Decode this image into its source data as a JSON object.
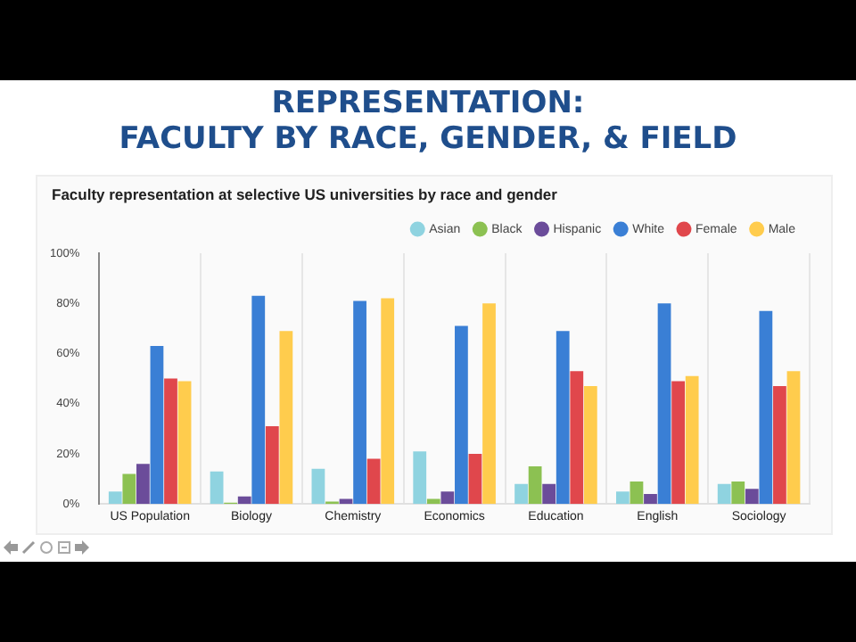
{
  "chart_data": {
    "type": "bar",
    "title": "REPRESENTATION:\nFACULTY BY RACE, GENDER, & FIELD",
    "subtitle": "Faculty representation at selective US universities by race and gender",
    "categories": [
      "US Population",
      "Biology",
      "Chemistry",
      "Economics",
      "Education",
      "English",
      "Sociology"
    ],
    "series": [
      {
        "name": "Asian",
        "color": "#8fd3e0",
        "values": [
          5,
          13,
          14,
          21,
          8,
          5,
          8
        ]
      },
      {
        "name": "Black",
        "color": "#8cc152",
        "values": [
          12,
          0.5,
          1,
          2,
          15,
          9,
          9
        ]
      },
      {
        "name": "Hispanic",
        "color": "#6b4c9a",
        "values": [
          16,
          3,
          2,
          5,
          8,
          4,
          6
        ]
      },
      {
        "name": "White",
        "color": "#3a7fd5",
        "values": [
          63,
          83,
          81,
          71,
          69,
          80,
          77
        ]
      },
      {
        "name": "Female",
        "color": "#e0474c",
        "values": [
          50,
          31,
          18,
          20,
          53,
          49,
          47
        ]
      },
      {
        "name": "Male",
        "color": "#ffcc4d",
        "values": [
          49,
          69,
          82,
          80,
          47,
          51,
          53
        ]
      }
    ],
    "ylim": [
      0,
      100
    ],
    "yticks": [
      {
        "value": 0,
        "label": "0%"
      },
      {
        "value": 20,
        "label": "20%"
      },
      {
        "value": 40,
        "label": "40%"
      },
      {
        "value": 60,
        "label": "60%"
      },
      {
        "value": 80,
        "label": "80%"
      },
      {
        "value": 100,
        "label": "100%"
      }
    ],
    "grid": "x",
    "legend": "top right"
  }
}
